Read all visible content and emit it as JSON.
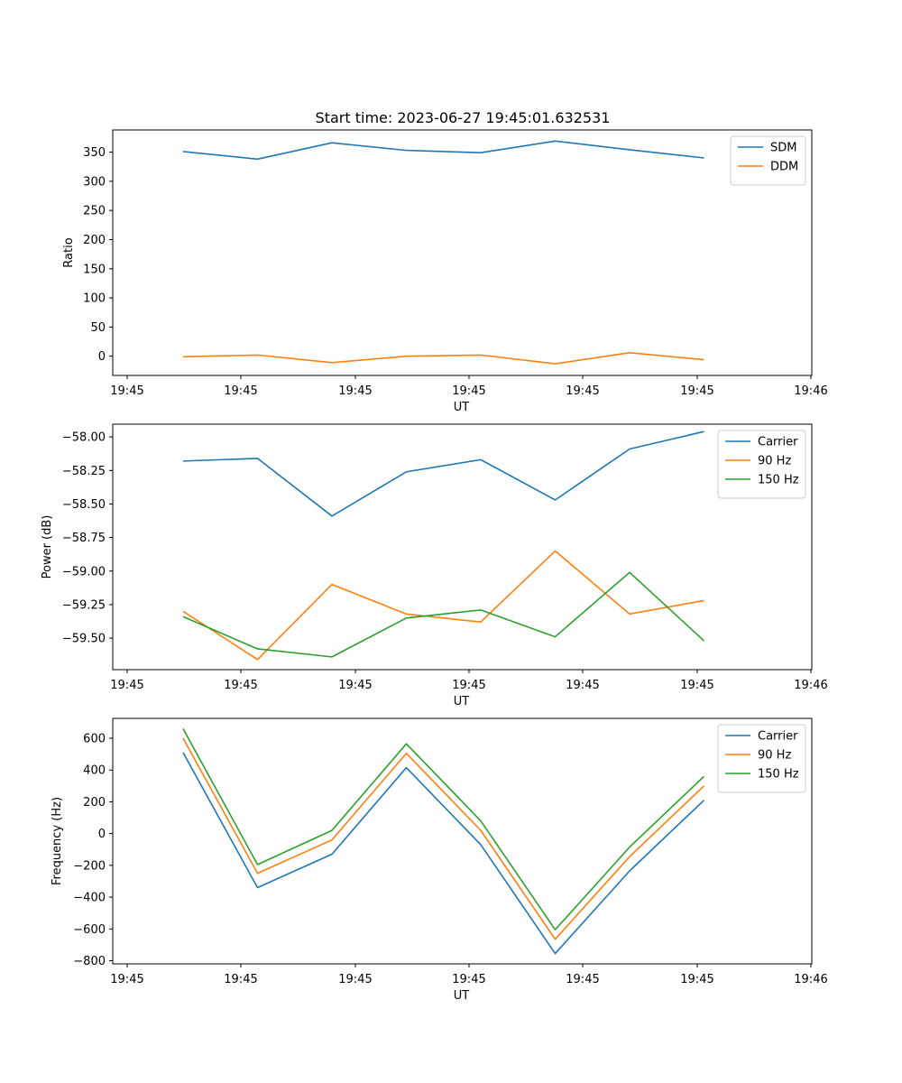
{
  "figure": {
    "title": "Start time: 2023-06-27 19:45:01.632531"
  },
  "chart_data": [
    {
      "type": "line",
      "title": "Start time: 2023-06-27 19:45:01.632531",
      "xlabel": "UT",
      "ylabel": "Ratio",
      "x_tick_labels": [
        "19:45",
        "19:45",
        "19:45",
        "19:45",
        "19:45",
        "19:45",
        "19:46"
      ],
      "ylim": [
        -33,
        388
      ],
      "y_ticks": [
        0,
        50,
        100,
        150,
        200,
        250,
        300,
        350
      ],
      "legend_position": "top-right",
      "series": [
        {
          "name": "SDM",
          "color": "#1f77b4",
          "values": [
            351,
            338,
            366,
            353,
            349,
            369,
            354,
            340
          ]
        },
        {
          "name": "DDM",
          "color": "#ff7f0e",
          "values": [
            -1,
            2,
            -11,
            0,
            2,
            -13,
            6,
            -6
          ]
        }
      ]
    },
    {
      "type": "line",
      "title": "",
      "xlabel": "UT",
      "ylabel": "Power (dB)",
      "x_tick_labels": [
        "19:45",
        "19:45",
        "19:45",
        "19:45",
        "19:45",
        "19:45",
        "19:46"
      ],
      "ylim": [
        -59.735,
        -57.905
      ],
      "y_ticks": [
        -58.0,
        -58.25,
        -58.5,
        -58.75,
        -59.0,
        -59.25,
        -59.5
      ],
      "y_tick_labels": [
        "−58.00",
        "−58.25",
        "−58.50",
        "−58.75",
        "−59.00",
        "−59.25",
        "−59.50"
      ],
      "legend_position": "top-right",
      "series": [
        {
          "name": "Carrier",
          "color": "#1f77b4",
          "values": [
            -58.18,
            -58.16,
            -58.59,
            -58.26,
            -58.17,
            -58.47,
            -58.09,
            -57.96
          ]
        },
        {
          "name": "90 Hz",
          "color": "#ff7f0e",
          "values": [
            -59.3,
            -59.66,
            -59.1,
            -59.32,
            -59.38,
            -58.85,
            -59.32,
            -59.22
          ]
        },
        {
          "name": "150 Hz",
          "color": "#2ca02c",
          "values": [
            -59.34,
            -59.58,
            -59.64,
            -59.35,
            -59.29,
            -59.49,
            -59.01,
            -59.52
          ]
        }
      ]
    },
    {
      "type": "line",
      "title": "",
      "xlabel": "UT",
      "ylabel": "Frequency (Hz)",
      "x_tick_labels": [
        "19:45",
        "19:45",
        "19:45",
        "19:45",
        "19:45",
        "19:45",
        "19:46"
      ],
      "ylim": [
        -820,
        725
      ],
      "y_ticks": [
        600,
        400,
        200,
        0,
        -200,
        -400,
        -600,
        -800
      ],
      "y_tick_labels": [
        "600",
        "400",
        "200",
        "0",
        "−200",
        "−400",
        "−600",
        "−800"
      ],
      "legend_position": "top-right",
      "series": [
        {
          "name": "Carrier",
          "color": "#1f77b4",
          "values": [
            510,
            -340,
            -130,
            415,
            -70,
            -755,
            -235,
            210
          ]
        },
        {
          "name": "90 Hz",
          "color": "#ff7f0e",
          "values": [
            600,
            -250,
            -40,
            505,
            20,
            -665,
            -145,
            300
          ]
        },
        {
          "name": "150 Hz",
          "color": "#2ca02c",
          "values": [
            660,
            -195,
            20,
            565,
            80,
            -605,
            -85,
            360
          ]
        }
      ]
    }
  ]
}
